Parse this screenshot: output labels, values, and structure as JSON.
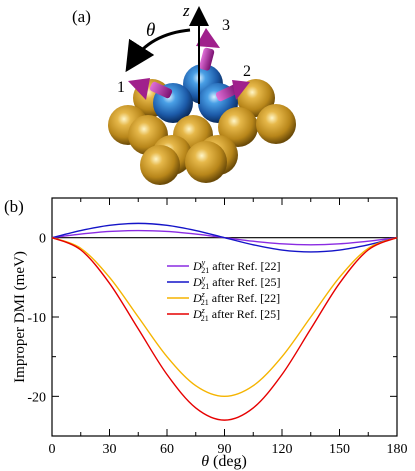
{
  "panel_a": {
    "label": "(a)",
    "theta_label": "θ",
    "z_label": "z",
    "atom_labels": [
      "1",
      "2",
      "3"
    ]
  },
  "panel_b": {
    "label": "(b)"
  },
  "colors": {
    "gold_atom": "#c8961e",
    "blue_atom": "#2a78c8",
    "spin_arrow": "#a0208c",
    "series_purple": "#8a2be2",
    "series_blue": "#1414c8",
    "series_orange": "#f5b400",
    "series_red": "#e60000"
  },
  "chart_data": {
    "type": "line",
    "xlabel": "θ (deg)",
    "ylabel": "Improper DMI (meV)",
    "xlim": [
      0,
      180
    ],
    "ylim": [
      -25,
      5
    ],
    "xticks": [
      0,
      30,
      60,
      90,
      120,
      150,
      180
    ],
    "yticks": [
      0,
      -10,
      -20
    ],
    "grid": false,
    "legend_position": "center",
    "series": [
      {
        "name": "D21y after Ref. [22]",
        "legend": {
          "base": "D",
          "sub": "21",
          "sup": "y",
          "suffix": " after Ref. [22]"
        },
        "color": "#8a2be2",
        "x": [
          0,
          15,
          30,
          45,
          60,
          75,
          90,
          105,
          120,
          135,
          150,
          165,
          180
        ],
        "y": [
          0,
          0.45,
          0.78,
          0.9,
          0.78,
          0.45,
          0,
          -0.45,
          -0.78,
          -0.9,
          -0.78,
          -0.45,
          0
        ]
      },
      {
        "name": "D21y after Ref. [25]",
        "legend": {
          "base": "D",
          "sub": "21",
          "sup": "y",
          "suffix": " after Ref. [25]"
        },
        "color": "#1414c8",
        "x": [
          0,
          15,
          30,
          45,
          60,
          75,
          90,
          105,
          120,
          135,
          150,
          165,
          180
        ],
        "y": [
          0,
          0.9,
          1.56,
          1.8,
          1.56,
          0.9,
          0,
          -0.9,
          -1.56,
          -1.8,
          -1.56,
          -0.9,
          0
        ]
      },
      {
        "name": "D21z after Ref. [22]",
        "legend": {
          "base": "D",
          "sub": "21",
          "sup": "z",
          "suffix": " after Ref. [22]"
        },
        "color": "#f5b400",
        "x": [
          0,
          15,
          30,
          45,
          60,
          75,
          90,
          105,
          120,
          135,
          150,
          165,
          180
        ],
        "y": [
          0,
          -1.34,
          -5.0,
          -10.0,
          -15.0,
          -18.66,
          -20.0,
          -18.66,
          -15.0,
          -10.0,
          -5.0,
          -1.34,
          0
        ]
      },
      {
        "name": "D21z after Ref. [25]",
        "legend": {
          "base": "D",
          "sub": "21",
          "sup": "z",
          "suffix": " after Ref. [25]"
        },
        "color": "#e60000",
        "x": [
          0,
          15,
          30,
          45,
          60,
          75,
          90,
          105,
          120,
          135,
          150,
          165,
          180
        ],
        "y": [
          0,
          -1.54,
          -5.75,
          -11.5,
          -17.25,
          -21.46,
          -23.0,
          -21.46,
          -17.25,
          -11.5,
          -5.75,
          -1.54,
          0
        ]
      }
    ]
  }
}
